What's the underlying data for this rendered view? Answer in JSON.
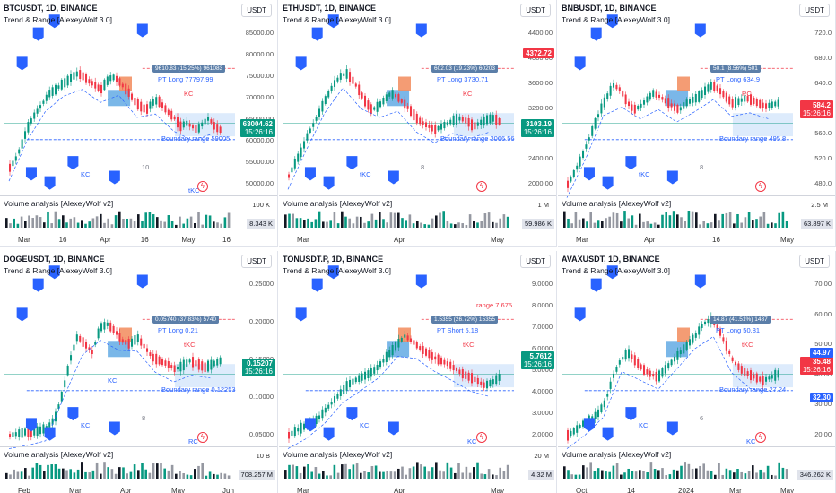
{
  "panels": [
    {
      "title": "BTCUSDT, 1D, BINANCE",
      "indicator": "Trend & Range [AlexeyWolf 3.0]",
      "currency": "USDT",
      "price_axis": [
        "85000.00",
        "80000.00",
        "75000.00",
        "70000.00",
        "65000.00",
        "60000.00",
        "55000.00",
        "50000.00"
      ],
      "time_axis": [
        "Mar",
        "16",
        "Apr",
        "16",
        "May",
        "16"
      ],
      "last_price": "63004.62",
      "countdown": "15:26:16",
      "pt_label": "PT Long 77797.99",
      "boundary_label": "Boundary range 59005",
      "stat_label": "9610.83 (15.25%) 961083",
      "kc_labels": [
        "KC",
        "KC",
        "tKC"
      ],
      "count_label": "10",
      "volume_title": "Volume analysis [AlexeyWolf v2]",
      "volume_axis": "100 K",
      "volume_value": "8.343 K"
    },
    {
      "title": "ETHUSDT, 1D, BINANCE",
      "indicator": "Trend & Range [AlexeyWolf 3.0]",
      "currency": "USDT",
      "price_axis": [
        "4400.00",
        "4000.00",
        "3600.00",
        "3200.00",
        "2800.00",
        "2400.00",
        "2000.00"
      ],
      "time_axis": [
        "Mar",
        "Apr",
        "May"
      ],
      "last_price": "3103.19",
      "countdown": "15:26:16",
      "top_price": "4372.72",
      "pt_label": "PT Long 3730.71",
      "boundary_label": "Boundary range 3066.56",
      "stat_label": "602.03 (19.23%) 60203",
      "kc_labels": [
        "KC",
        "tKC"
      ],
      "count_label": "8",
      "volume_title": "Volume analysis [AlexeyWolf v2]",
      "volume_axis": "1 M",
      "volume_value": "59.986 K"
    },
    {
      "title": "BNBUSDT, 1D, BINANCE",
      "indicator": "Trend & Range [AlexeyWolf 3.0]",
      "currency": "USDT",
      "price_axis": [
        "720.0",
        "680.0",
        "640.0",
        "600.0",
        "560.0",
        "520.0",
        "480.0"
      ],
      "time_axis": [
        "Mar",
        "Apr",
        "16",
        "May"
      ],
      "last_price": "584.2",
      "countdown": "15:26:16",
      "pt_label": "PT Long 634.9",
      "boundary_label": "Boundary range 495.8",
      "stat_label": "50.1 (8.56%) 501",
      "kc_labels": [
        "RC",
        "tKC"
      ],
      "count_label": "8",
      "volume_title": "Volume analysis [AlexeyWolf v2]",
      "volume_axis": "2.5 M",
      "volume_value": "63.897 K"
    },
    {
      "title": "DOGEUSDT, 1D, BINANCE",
      "indicator": "Trend & Range [AlexeyWolf 3.0]",
      "currency": "USDT",
      "price_axis": [
        "0.25000",
        "0.20000",
        "0.15000",
        "0.10000",
        "0.05000"
      ],
      "time_axis": [
        "Feb",
        "Mar",
        "Apr",
        "May",
        "Jun"
      ],
      "last_price": "0.15207",
      "countdown": "15:26:16",
      "pt_label": "PT Long 0.21",
      "boundary_label": "Boundary range 0.12253",
      "stat_label": "0.05740 (37.83%) 5740",
      "kc_labels": [
        "tKC",
        "KC",
        "RC",
        "KC"
      ],
      "count_label": "8",
      "volume_title": "Volume analysis [AlexeyWolf v2]",
      "volume_axis": "10 B",
      "volume_value": "708.257 M"
    },
    {
      "title": "TONUSDT.P, 1D, BINANCE",
      "indicator": "Trend & Range [AlexeyWolf 3.0]",
      "currency": "USDT",
      "price_axis": [
        "9.0000",
        "8.0000",
        "7.0000",
        "6.0000",
        "5.0000",
        "4.0000",
        "3.0000",
        "2.0000"
      ],
      "time_axis": [
        "Mar",
        "Apr",
        "May"
      ],
      "last_price": "5.7612",
      "countdown": "15:26:16",
      "pt_label": "PT Short 5.18",
      "range_label": "range 7.675",
      "stat_label": "1.5355 (26.72%) 15355",
      "kc_labels": [
        "tKC",
        "KC",
        "KC"
      ],
      "volume_title": "Volume analysis [AlexeyWolf v2]",
      "volume_axis": "20 M",
      "volume_value": "4.32 M"
    },
    {
      "title": "AVAXUSDT, 1D, BINANCE",
      "indicator": "Trend & Range [AlexeyWolf 3.0]",
      "currency": "USDT",
      "price_axis": [
        "70.00",
        "60.00",
        "50.00",
        "40.00",
        "30.00",
        "20.00"
      ],
      "time_axis": [
        "Oct",
        "14",
        "2024",
        "Mar",
        "May"
      ],
      "last_price": "35.48",
      "countdown": "15:26:16",
      "level_1": "44.97",
      "level_2": "32.30",
      "pt_label": "PT Long 50.81",
      "boundary_label": "Boundary range 27.24",
      "stat_label": "14.87 (41.51%) 1487",
      "kc_labels": [
        "tKC",
        "KC",
        "KC"
      ],
      "count_label": "6",
      "volume_title": "Volume analysis [AlexeyWolf v2]",
      "volume_axis": "",
      "volume_value": "346.262 K"
    }
  ],
  "colors": {
    "up": "#089981",
    "down": "#f23645",
    "accent": "#2962ff",
    "range_fill": "#cfe3fb",
    "marker": "#2962ff"
  }
}
